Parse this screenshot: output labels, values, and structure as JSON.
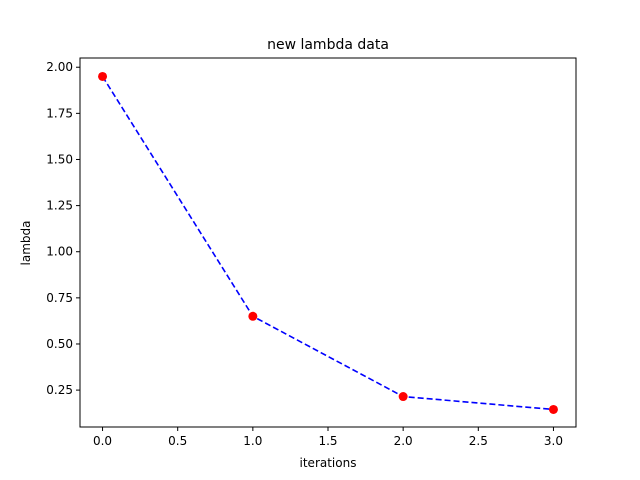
{
  "chart_data": {
    "type": "line",
    "title": "new lambda data",
    "xlabel": "iterations",
    "ylabel": "lambda",
    "x": [
      0,
      1,
      2,
      3
    ],
    "series": [
      {
        "values": [
          1.95,
          0.65,
          0.215,
          0.145
        ],
        "line_color": "#0000ff",
        "line_style": "dashed",
        "marker_color": "#ff0000",
        "marker": "circle"
      }
    ],
    "xlim": [
      -0.15,
      3.15
    ],
    "ylim": [
      0.05,
      2.05
    ],
    "xticks": [
      0.0,
      0.5,
      1.0,
      1.5,
      2.0,
      2.5,
      3.0
    ],
    "xtick_labels": [
      "0.0",
      "0.5",
      "1.0",
      "1.5",
      "2.0",
      "2.5",
      "3.0"
    ],
    "yticks": [
      0.25,
      0.5,
      0.75,
      1.0,
      1.25,
      1.5,
      1.75,
      2.0
    ],
    "ytick_labels": [
      "0.25",
      "0.50",
      "0.75",
      "1.00",
      "1.25",
      "1.50",
      "1.75",
      "2.00"
    ],
    "grid": false,
    "legend": false
  }
}
